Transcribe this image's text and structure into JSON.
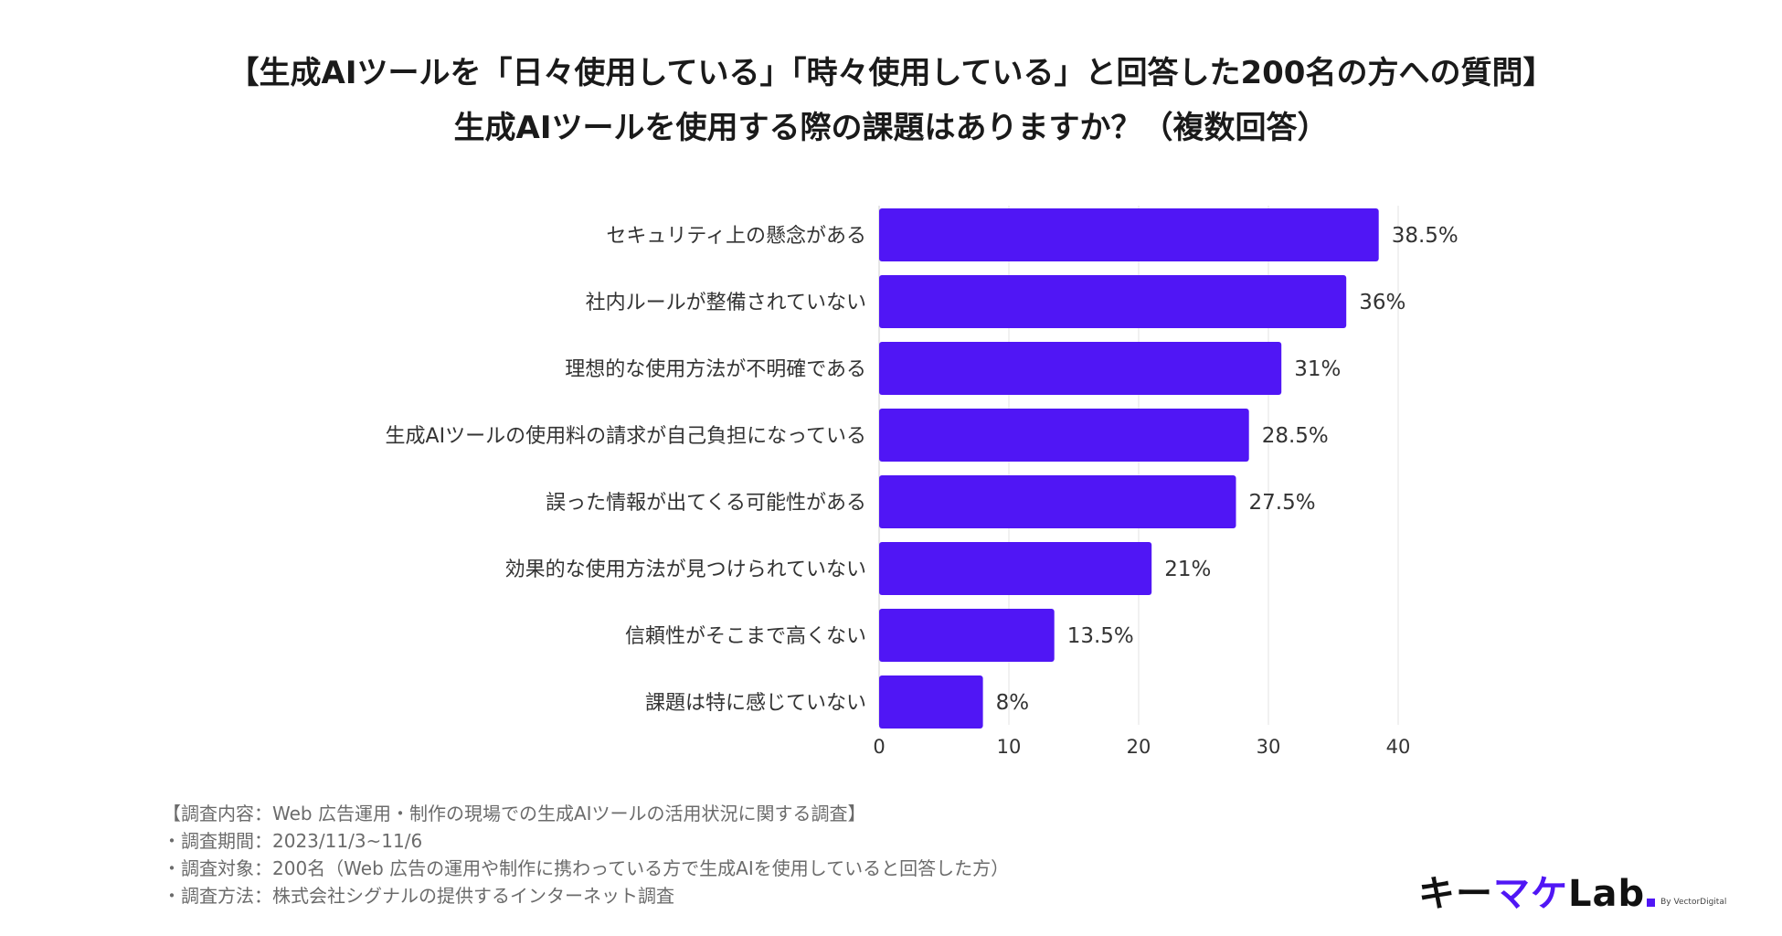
{
  "title_line1": "【生成AIツールを「日々使用している」「時々使用している」と回答した200名の方への質問】",
  "title_line2": "生成AIツールを使用する際の課題はありますか？（複数回答）",
  "chart_data": {
    "type": "bar",
    "orientation": "horizontal",
    "categories": [
      "セキュリティ上の懸念がある",
      "社内ルールが整備されていない",
      "理想的な使用方法が不明確である",
      "生成AIツールの使用料の請求が自己負担になっている",
      "誤った情報が出てくる可能性がある",
      "効果的な使用方法が見つけられていない",
      "信頼性がそこまで高くない",
      "課題は特に感じていない"
    ],
    "values": [
      38.5,
      36,
      31,
      28.5,
      27.5,
      21,
      13.5,
      8
    ],
    "value_labels": [
      "38.5%",
      "36%",
      "31%",
      "28.5%",
      "27.5%",
      "21%",
      "13.5%",
      "8%"
    ],
    "xlim": [
      0,
      40
    ],
    "xticks": [
      0,
      10,
      20,
      30,
      40
    ],
    "xtick_labels": [
      "0",
      "10",
      "20",
      "30",
      "40"
    ],
    "grid": true,
    "bar_color": "#5016f5"
  },
  "notes": [
    "【調査内容：Web 広告運用・制作の現場での生成AIツールの活用状況に関する調査】",
    "・調査期間：2023/11/3~11/6",
    "・調査対象：200名（Web 広告の運用や制作に携わっている方で生成AIを使用していると回答した方）",
    "・調査方法：株式会社シグナルの提供するインターネット調査"
  ],
  "logo": {
    "part1": "キー",
    "part2": "マケ",
    "part3": "Lab",
    "sub": "By VectorDigital"
  }
}
